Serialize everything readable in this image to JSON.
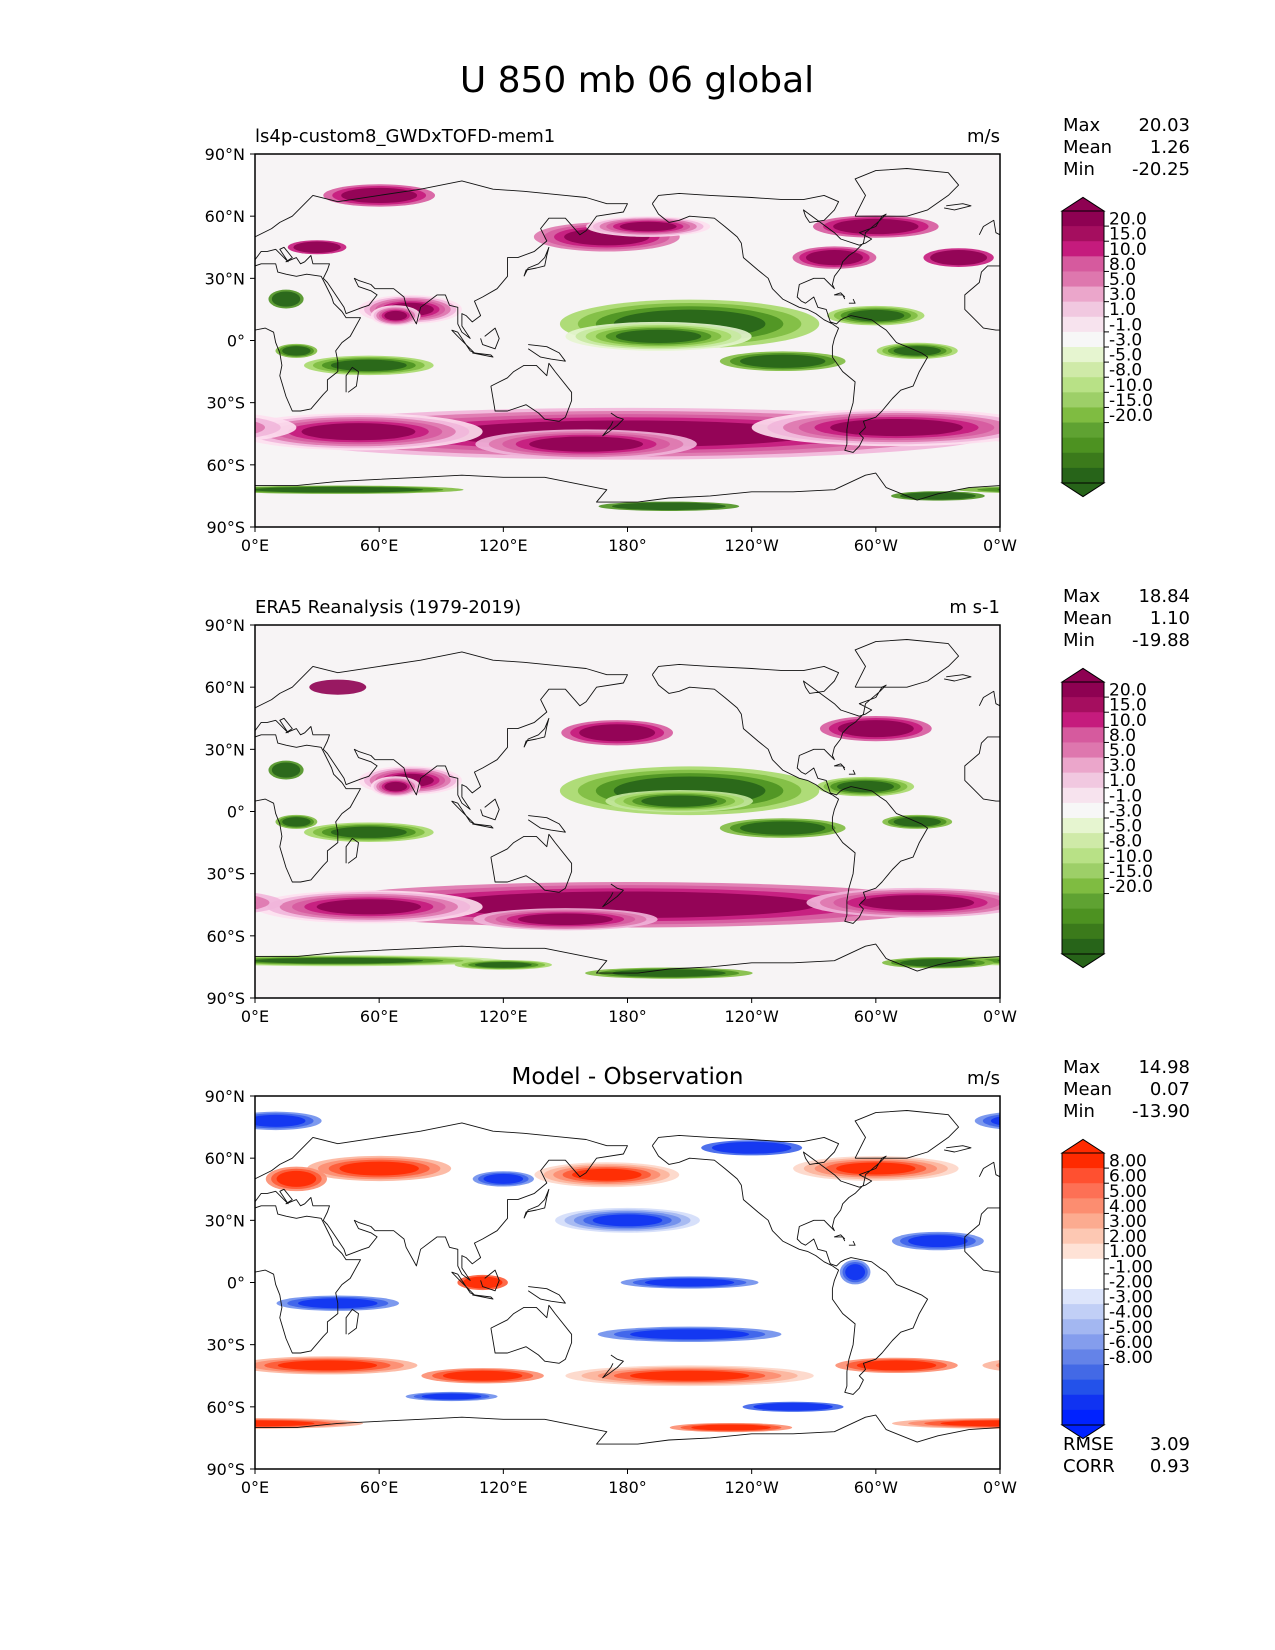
{
  "title": "U 850 mb 06 global",
  "axes": {
    "lat_labels": [
      "90°N",
      "60°N",
      "30°N",
      "0°",
      "30°S",
      "60°S",
      "90°S"
    ],
    "lon_labels": [
      "0°E",
      "60°E",
      "120°E",
      "180°",
      "120°W",
      "60°W",
      "0°W"
    ]
  },
  "stat_labels": {
    "max": "Max",
    "mean": "Mean",
    "min": "Min"
  },
  "panels": [
    {
      "left_title": "ls4p-custom8_GWDxTOFD-mem1",
      "center_title": "",
      "units": "m/s",
      "stats": {
        "max": "20.03",
        "mean": "1.26",
        "min": "-20.25"
      },
      "colorbar": {
        "levels": [
          "20.0",
          "15.0",
          "10.0",
          "8.0",
          "5.0",
          "3.0",
          "1.0",
          "-1.0",
          "-3.0",
          "-5.0",
          "-8.0",
          "-10.0",
          "-15.0",
          "-20.0"
        ],
        "colors": [
          "#8e0152",
          "#a50e5f",
          "#c51b7d",
          "#d65a9e",
          "#de77ae",
          "#eba6cb",
          "#f1c8e0",
          "#f7e3ee",
          "#f7f7f7",
          "#e6f5d0",
          "#cfeaa8",
          "#b8e186",
          "#9dcf68",
          "#7fbc41",
          "#5fa232",
          "#4d9221",
          "#3b7a1b",
          "#276419"
        ]
      }
    },
    {
      "left_title": "ERA5 Reanalysis (1979-2019)",
      "center_title": "",
      "units": "m s-1",
      "stats": {
        "max": "18.84",
        "mean": "1.10",
        "min": "-19.88"
      },
      "colorbar": {
        "levels": [
          "20.0",
          "15.0",
          "10.0",
          "8.0",
          "5.0",
          "3.0",
          "1.0",
          "-1.0",
          "-3.0",
          "-5.0",
          "-8.0",
          "-10.0",
          "-15.0",
          "-20.0"
        ],
        "colors": [
          "#8e0152",
          "#a50e5f",
          "#c51b7d",
          "#d65a9e",
          "#de77ae",
          "#eba6cb",
          "#f1c8e0",
          "#f7e3ee",
          "#f7f7f7",
          "#e6f5d0",
          "#cfeaa8",
          "#b8e186",
          "#9dcf68",
          "#7fbc41",
          "#5fa232",
          "#4d9221",
          "#3b7a1b",
          "#276419"
        ]
      }
    },
    {
      "left_title": "",
      "center_title": "Model - Observation",
      "units": "m/s",
      "stats": {
        "max": "14.98",
        "mean": "0.07",
        "min": "-13.90"
      },
      "extra_stats": [
        {
          "label": "RMSE",
          "value": "3.09"
        },
        {
          "label": "CORR",
          "value": "0.93"
        }
      ],
      "colorbar": {
        "levels": [
          "8.00",
          "6.00",
          "5.00",
          "4.00",
          "3.00",
          "2.00",
          "1.00",
          "-1.00",
          "-2.00",
          "-3.00",
          "-4.00",
          "-5.00",
          "-6.00",
          "-8.00"
        ],
        "colors": [
          "#ff2a00",
          "#ff5030",
          "#fd7055",
          "#fc8d70",
          "#fcab90",
          "#fdc8b3",
          "#fee2d6",
          "#ffffff",
          "#ffffff",
          "#dde5fb",
          "#c1cff6",
          "#a3b7f1",
          "#849ded",
          "#6483e8",
          "#4369e6",
          "#2352ea",
          "#1033f2",
          "#0022ff"
        ]
      }
    }
  ],
  "chart_data": {
    "type": "heatmap",
    "title": "U 850 mb 06 global",
    "variable": "U 850 mb",
    "units": "m/s",
    "xlim": [
      0,
      360
    ],
    "ylim": [
      -90,
      90
    ],
    "xticks": [
      "0°E",
      "60°E",
      "120°E",
      "180°",
      "120°W",
      "60°W",
      "0°W"
    ],
    "yticks": [
      "90°N",
      "60°N",
      "30°N",
      "0°",
      "30°S",
      "60°S",
      "90°S"
    ],
    "series": [
      {
        "name": "ls4p-custom8_GWDxTOFD-mem1",
        "max": 20.03,
        "mean": 1.26,
        "min": -20.25
      },
      {
        "name": "ERA5 Reanalysis (1979-2019)",
        "max": 18.84,
        "mean": 1.1,
        "min": -19.88
      },
      {
        "name": "Model - Observation",
        "max": 14.98,
        "mean": 0.07,
        "min": -13.9,
        "rmse": 3.09,
        "corr": 0.93
      }
    ]
  }
}
